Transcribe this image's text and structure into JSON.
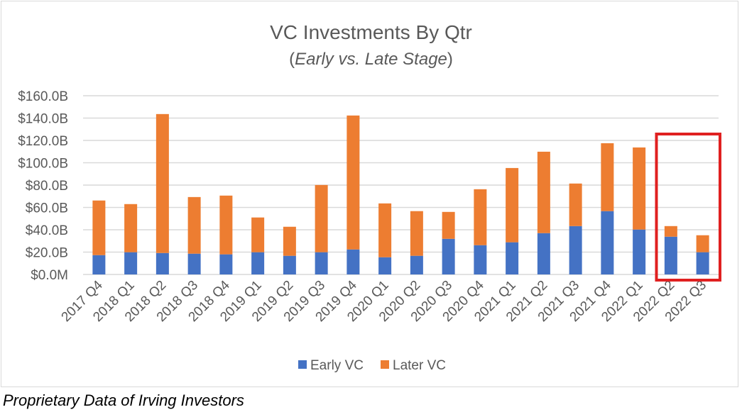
{
  "chart_data": {
    "type": "bar",
    "stacked": true,
    "title": "VC Investments By Qtr",
    "subtitle_open": "(",
    "subtitle_italic": "Early vs. Late Stage",
    "subtitle_close": ")",
    "xlabel": "",
    "ylabel": "",
    "ylim": [
      0,
      160
    ],
    "yticks": [
      0,
      20,
      40,
      60,
      80,
      100,
      120,
      140,
      160
    ],
    "ytick_labels": [
      "$0.0M",
      "$20.0B",
      "$40.0B",
      "$60.0B",
      "$80.0B",
      "$100.0B",
      "$120.0B",
      "$140.0B",
      "$160.0B"
    ],
    "grid": true,
    "legend_position": "bottom",
    "categories": [
      "2017 Q4",
      "2018 Q1",
      "2018 Q2",
      "2018 Q3",
      "2018 Q4",
      "2019 Q1",
      "2019 Q2",
      "2019 Q3",
      "2019 Q4",
      "2020 Q1",
      "2020 Q2",
      "2020 Q3",
      "2020 Q4",
      "2021 Q1",
      "2021 Q2",
      "2021 Q3",
      "2021 Q4",
      "2022 Q1",
      "2022 Q2",
      "2022 Q3"
    ],
    "series": [
      {
        "name": "Early VC",
        "color": "#4472c4",
        "values": [
          17.3,
          19.9,
          19.2,
          18.6,
          18.0,
          19.9,
          16.7,
          19.9,
          22.4,
          15.4,
          16.7,
          31.9,
          26.2,
          28.8,
          37.0,
          43.3,
          56.7,
          40.2,
          33.8,
          19.9
        ]
      },
      {
        "name": "Later VC",
        "color": "#ed7d31",
        "values": [
          48.9,
          43.1,
          124.4,
          50.7,
          52.6,
          31.1,
          26.0,
          60.2,
          119.9,
          48.2,
          40.0,
          24.1,
          50.1,
          66.5,
          72.9,
          38.1,
          60.8,
          73.5,
          9.5,
          15.2
        ]
      }
    ],
    "annotations": [
      {
        "type": "highlight-box",
        "color": "#e02020",
        "categories": [
          "2022 Q2",
          "2022 Q3"
        ]
      }
    ]
  },
  "footer": "Proprietary Data of Irving Investors"
}
